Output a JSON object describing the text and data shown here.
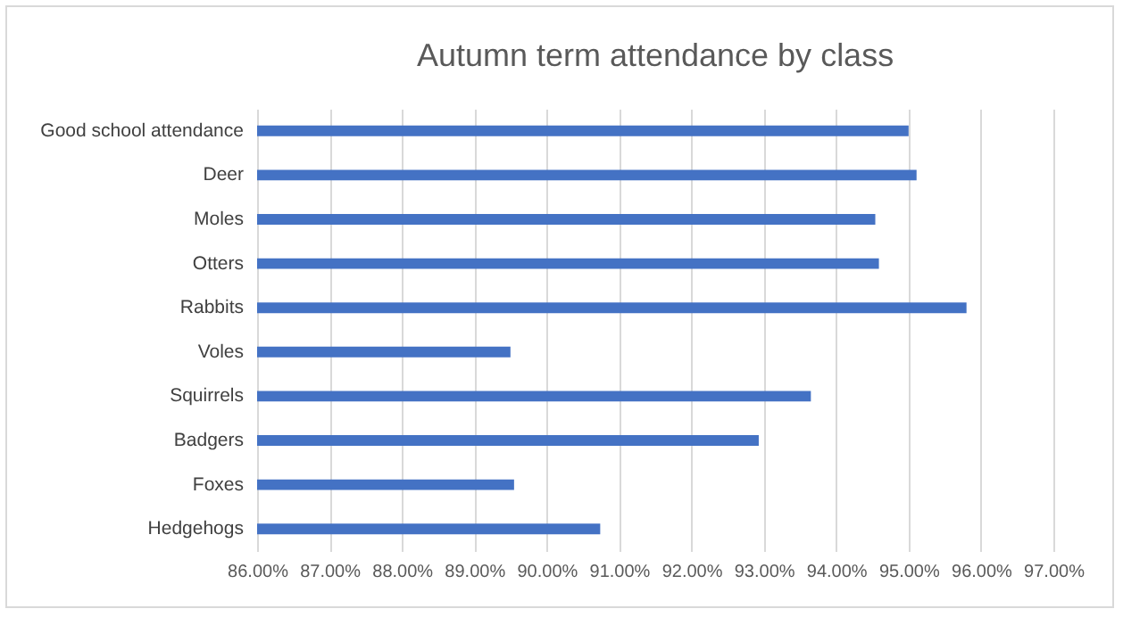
{
  "chart_data": {
    "type": "bar",
    "orientation": "horizontal",
    "title": "Autumn term attendance by class",
    "categories": [
      "Good school attendance",
      "Deer",
      "Moles",
      "Otters",
      "Rabbits",
      "Voles",
      "Squirrels",
      "Badgers",
      "Foxes",
      "Hedgehogs"
    ],
    "values": [
      95.0,
      95.11,
      94.54,
      94.59,
      95.8,
      89.5,
      93.65,
      92.93,
      89.55,
      90.74
    ],
    "color": "#4472c4",
    "xlim": [
      86,
      97
    ],
    "xticks": [
      {
        "value": 86,
        "label": "86.00%"
      },
      {
        "value": 87,
        "label": "87.00%"
      },
      {
        "value": 88,
        "label": "88.00%"
      },
      {
        "value": 89,
        "label": "89.00%"
      },
      {
        "value": 90,
        "label": "90.00%"
      },
      {
        "value": 91,
        "label": "91.00%"
      },
      {
        "value": 92,
        "label": "92.00%"
      },
      {
        "value": 93,
        "label": "93.00%"
      },
      {
        "value": 94,
        "label": "94.00%"
      },
      {
        "value": 95,
        "label": "95.00%"
      },
      {
        "value": 96,
        "label": "96.00%"
      },
      {
        "value": 97,
        "label": "97.00%"
      }
    ],
    "grid": "x"
  }
}
